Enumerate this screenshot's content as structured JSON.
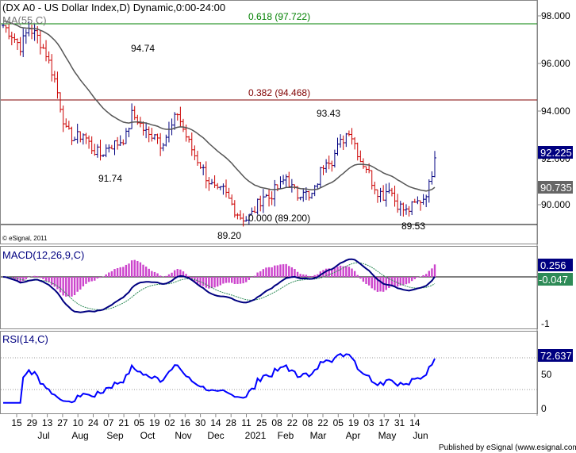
{
  "window": {
    "title": "(DX A0 - US Dollar Index,D) Dynamic,0:00-24:00",
    "ma_label": "MA(55,C)",
    "copyright": "© eSignal, 2011",
    "footer": "Published by eSignal (www.esignal.com)"
  },
  "colors": {
    "price_bars": "#000080",
    "up_bars": "#000080",
    "down_bars": "#cc0000",
    "ma_line": "#555555",
    "fib_618_line": "#008000",
    "fib_382_line": "#800000",
    "fib_000_line": "#000000",
    "macd_line": "#000080",
    "signal_line": "#2e8b57",
    "histogram": "#cc44cc",
    "rsi_line": "#0000ff",
    "current_price_badge": "#000080",
    "ma_badge": "#666666",
    "macd_badge": "#000080",
    "signal_badge": "#2e8b57",
    "rsi_badge": "#000080"
  },
  "chart_data": [
    {
      "type": "candlestick-ohlc",
      "title": "(DX A0 - US Dollar Index,D) Dynamic,0:00-24:00",
      "ylim": [
        88.5,
        98.5
      ],
      "y_ticks": [
        "98.000",
        "96.000",
        "94.000",
        "92.000",
        "90.000"
      ],
      "x_labels": [
        "15",
        "29",
        "13",
        "27",
        "10",
        "24",
        "07",
        "21",
        "05",
        "19",
        "02",
        "16",
        "30",
        "14",
        "28",
        "11",
        "25",
        "08",
        "22",
        "08",
        "22",
        "05",
        "19",
        "03",
        "17",
        "31",
        "14"
      ],
      "month_labels": [
        "Jul",
        "Aug",
        "Sep",
        "Oct",
        "Nov",
        "Dec",
        "2021",
        "Feb",
        "Mar",
        "Apr",
        "May",
        "Jun"
      ],
      "last_price": "92.225",
      "ma_last": "90.735",
      "series": [
        {
          "name": "MA(55,C)",
          "y_end": 90.735
        }
      ],
      "close_path": [
        [
          0,
          97.6
        ],
        [
          3,
          97.2
        ],
        [
          6,
          96.7
        ],
        [
          9,
          97.5
        ],
        [
          12,
          97.1
        ],
        [
          15,
          96.4
        ],
        [
          18,
          95.3
        ],
        [
          20,
          94.2
        ],
        [
          22,
          93.1
        ],
        [
          25,
          92.8
        ],
        [
          28,
          93.0
        ],
        [
          31,
          92.4
        ],
        [
          34,
          92.1
        ],
        [
          37,
          92.5
        ],
        [
          40,
          92.6
        ],
        [
          43,
          92.9
        ],
        [
          45,
          93.8
        ],
        [
          47,
          93.6
        ],
        [
          49,
          93.2
        ],
        [
          51,
          92.9
        ],
        [
          53,
          93.1
        ],
        [
          55,
          92.6
        ],
        [
          57,
          92.9
        ],
        [
          59,
          93.3
        ],
        [
          61,
          93.9
        ],
        [
          63,
          93.2
        ],
        [
          65,
          92.6
        ],
        [
          67,
          92.1
        ],
        [
          69,
          91.7
        ],
        [
          71,
          91.2
        ],
        [
          73,
          90.8
        ],
        [
          75,
          90.5
        ],
        [
          77,
          90.6
        ],
        [
          79,
          90.2
        ],
        [
          81,
          89.8
        ],
        [
          83,
          89.5
        ],
        [
          85,
          89.4
        ],
        [
          87,
          89.6
        ],
        [
          89,
          90.0
        ],
        [
          91,
          90.4
        ],
        [
          93,
          90.3
        ],
        [
          95,
          90.6
        ],
        [
          97,
          90.8
        ],
        [
          99,
          91.2
        ],
        [
          101,
          90.7
        ],
        [
          103,
          90.4
        ],
        [
          105,
          90.7
        ],
        [
          107,
          90.2
        ],
        [
          109,
          90.6
        ],
        [
          111,
          91.4
        ],
        [
          113,
          92.0
        ],
        [
          115,
          91.9
        ],
        [
          117,
          92.4
        ],
        [
          119,
          92.8
        ],
        [
          121,
          93.2
        ],
        [
          123,
          92.6
        ],
        [
          125,
          91.9
        ],
        [
          127,
          91.6
        ],
        [
          129,
          91.0
        ],
        [
          131,
          90.6
        ],
        [
          133,
          90.4
        ],
        [
          135,
          90.8
        ],
        [
          137,
          90.2
        ],
        [
          139,
          89.9
        ],
        [
          141,
          89.7
        ],
        [
          143,
          89.9
        ],
        [
          145,
          90.1
        ],
        [
          147,
          90.3
        ],
        [
          149,
          90.8
        ],
        [
          150,
          91.4
        ],
        [
          151,
          92.2
        ]
      ],
      "annotations": [
        {
          "text": "0.618 (97.722)",
          "value": 97.722
        },
        {
          "text": "0.382 (94.468)",
          "value": 94.468
        },
        {
          "text": "0.000 (89.200)",
          "value": 89.2
        },
        {
          "text": "94.74",
          "value": 94.74
        },
        {
          "text": "91.74",
          "value": 91.74
        },
        {
          "text": "93.43",
          "value": 93.43
        },
        {
          "text": "89.20",
          "value": 89.2
        },
        {
          "text": "89.53",
          "value": 89.53
        }
      ]
    },
    {
      "type": "line",
      "title": "MACD(12,26,9,C)",
      "ylim": [
        -1.0,
        0.55
      ],
      "y_ticks": [
        "-1"
      ],
      "series": [
        {
          "name": "MACD",
          "last": "0.256"
        },
        {
          "name": "Signal",
          "last": "-0.047"
        }
      ]
    },
    {
      "type": "line",
      "title": "RSI(14,C)",
      "ylim": [
        0,
        100
      ],
      "y_ticks": [
        "50",
        "0"
      ],
      "guide_levels": [
        70,
        30
      ],
      "series": [
        {
          "name": "RSI(14,C)",
          "last": "72.637"
        }
      ]
    }
  ]
}
